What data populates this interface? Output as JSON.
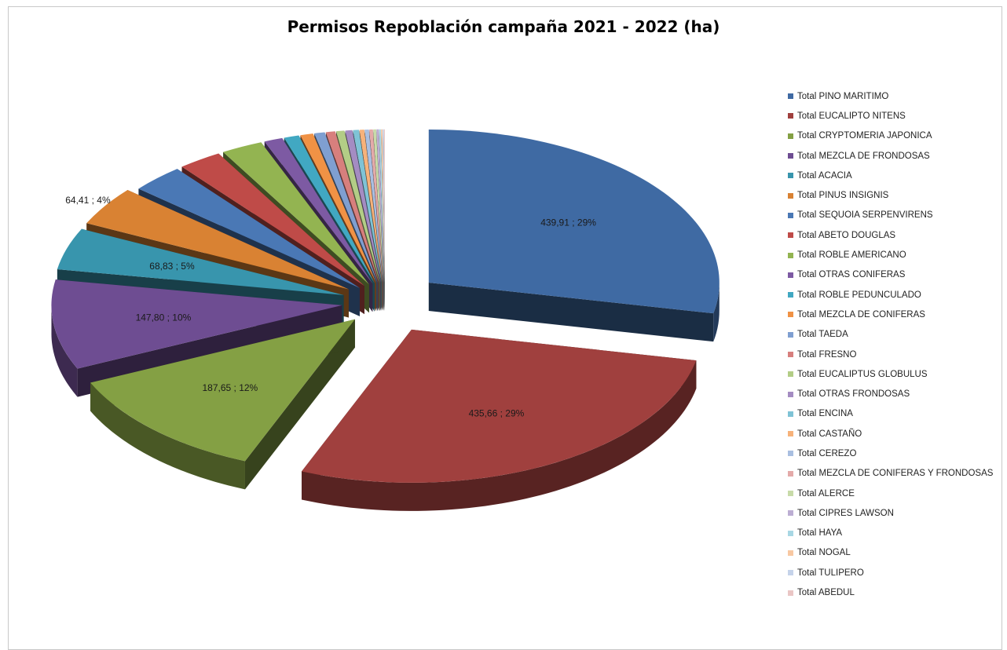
{
  "chart_data": {
    "type": "pie",
    "title": "Permisos Repoblación campaña 2021 - 2022 (ha)",
    "legend_position": "right",
    "labels": [
      "Total PINO MARITIMO",
      "Total EUCALIPTO NITENS",
      "Total CRYPTOMERIA JAPONICA",
      "Total MEZCLA DE FRONDOSAS",
      "Total ACACIA",
      "Total PINUS INSIGNIS",
      "Total SEQUOIA SERPENVIRENS",
      "Total ABETO DOUGLAS",
      "Total ROBLE AMERICANO",
      "Total OTRAS CONIFERAS",
      "Total ROBLE PEDUNCULADO",
      "Total MEZCLA DE CONIFERAS",
      "Total TAEDA",
      "Total FRESNO",
      "Total EUCALIPTUS GLOBULUS",
      "Total OTRAS FRONDOSAS",
      "Total ENCINA",
      "Total CASTAÑO",
      "Total CEREZO",
      "Total MEZCLA DE CONIFERAS Y FRONDOSAS",
      "Total ALERCE",
      "Total CIPRES LAWSON",
      "Total HAYA",
      "Total NOGAL",
      "Total TULIPERO",
      "Total ABEDUL"
    ],
    "values": [
      439.91,
      435.66,
      187.65,
      147.8,
      68.83,
      64.41,
      46,
      38,
      36,
      16,
      13,
      11,
      9,
      8,
      7,
      6,
      5,
      4,
      3.5,
      3,
      2.5,
      2,
      1.5,
      1.2,
      1,
      0.8
    ],
    "data_labels": [
      "439,91  ; 29%",
      "435,66  ; 29%",
      "187,65  ; 12%",
      "147,80  ; 10%",
      "68,83  ; 5%",
      "64,41  ; 4%",
      "",
      "",
      "",
      "",
      "",
      "",
      "",
      "",
      "",
      "",
      "",
      "",
      "",
      "",
      "",
      "",
      "",
      "",
      "",
      ""
    ],
    "colors": [
      "#3f6aa3",
      "#a0403e",
      "#84a044",
      "#6e4d92",
      "#3895ad",
      "#d98233",
      "#4a78b5",
      "#bf4b48",
      "#93b451",
      "#7d5aa3",
      "#41a8c2",
      "#f09245",
      "#7f9fd1",
      "#d77f7d",
      "#b3cd86",
      "#a48cc2",
      "#7fc3d6",
      "#f7b27a",
      "#a9bfe1",
      "#e4aaa9",
      "#c8dba9",
      "#bcaed3",
      "#a8d7e4",
      "#f8c8a2",
      "#c5d3ea",
      "#eac6c5"
    ]
  }
}
